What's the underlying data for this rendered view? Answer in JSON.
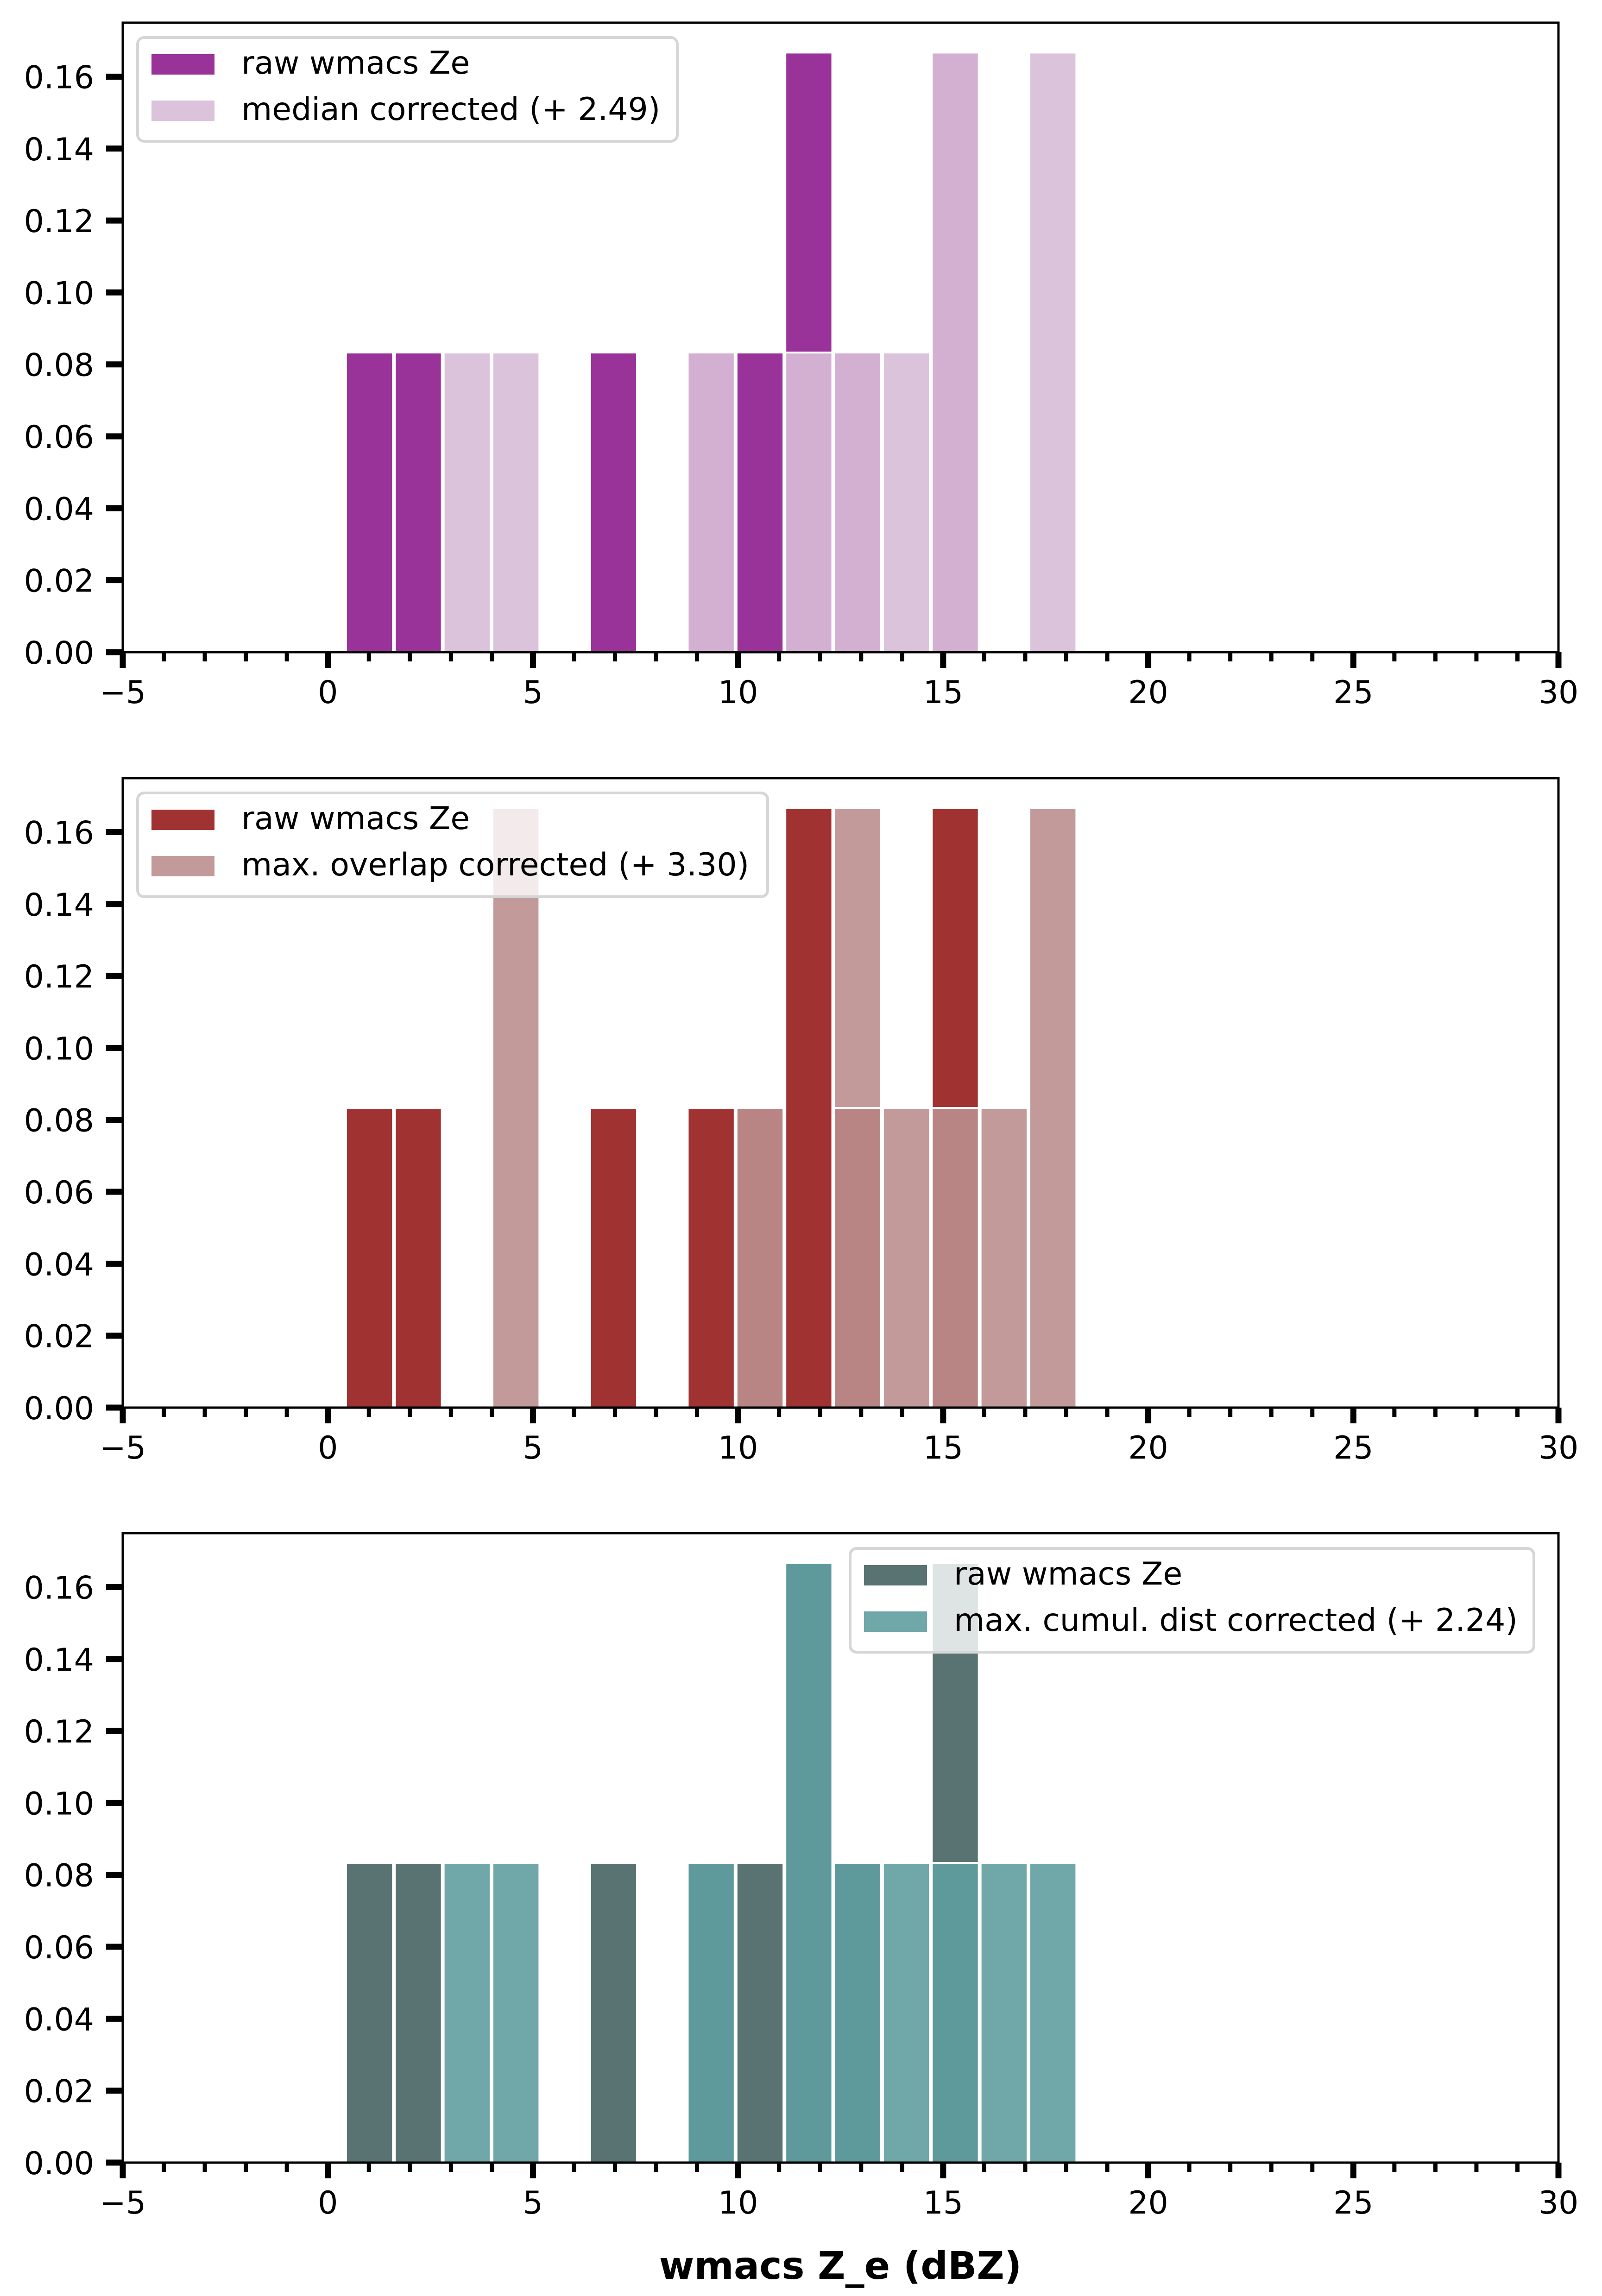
{
  "figure": {
    "xlabel": "wmacs Z_e (dBZ)"
  },
  "chart_data": [
    {
      "type": "bar",
      "subtype": "histogram-overlay",
      "title": "",
      "xlabel": "",
      "ylabel": "",
      "xlim": [
        -5,
        30
      ],
      "ylim": [
        0,
        0.175
      ],
      "x_major_ticks": [
        -5,
        0,
        5,
        10,
        15,
        20,
        25,
        30
      ],
      "x_tick_labels": [
        "−5",
        "0",
        "5",
        "10",
        "15",
        "20",
        "25",
        "30"
      ],
      "x_minor_step": 1,
      "y_ticks": [
        0.0,
        0.02,
        0.04,
        0.06,
        0.08,
        0.1,
        0.12,
        0.14,
        0.16
      ],
      "y_tick_labels": [
        "0.00",
        "0.02",
        "0.04",
        "0.06",
        "0.08",
        "0.10",
        "0.12",
        "0.14",
        "0.16"
      ],
      "grid": false,
      "legend_position": "upper-left",
      "bin_start": 0.42,
      "bin_width": 1.19,
      "bin_count": 15,
      "series": [
        {
          "name": "raw wmacs Ze",
          "color": "#993399",
          "values": [
            0.0833,
            0.0833,
            0,
            0,
            0,
            0.0833,
            0,
            0.0833,
            0.0833,
            0.1667,
            0.0833,
            0,
            0.1667,
            0,
            0
          ]
        },
        {
          "name": "median corrected (+ 2.49)",
          "color": "#DBC4DB",
          "values": [
            0,
            0,
            0.0833,
            0.0833,
            0,
            0,
            0,
            0.0833,
            0,
            0.0833,
            0.0833,
            0.0833,
            0.1667,
            0,
            0.1667
          ]
        }
      ],
      "overlap_color": "#D3B0D1"
    },
    {
      "type": "bar",
      "subtype": "histogram-overlay",
      "title": "",
      "xlabel": "",
      "ylabel": "",
      "xlim": [
        -5,
        30
      ],
      "ylim": [
        0,
        0.175
      ],
      "x_major_ticks": [
        -5,
        0,
        5,
        10,
        15,
        20,
        25,
        30
      ],
      "x_tick_labels": [
        "−5",
        "0",
        "5",
        "10",
        "15",
        "20",
        "25",
        "30"
      ],
      "x_minor_step": 1,
      "y_ticks": [
        0.0,
        0.02,
        0.04,
        0.06,
        0.08,
        0.1,
        0.12,
        0.14,
        0.16
      ],
      "y_tick_labels": [
        "0.00",
        "0.02",
        "0.04",
        "0.06",
        "0.08",
        "0.10",
        "0.12",
        "0.14",
        "0.16"
      ],
      "grid": false,
      "legend_position": "upper-left",
      "bin_start": 0.42,
      "bin_width": 1.19,
      "bin_count": 15,
      "series": [
        {
          "name": "raw wmacs Ze",
          "color": "#A03232",
          "values": [
            0.0833,
            0.0833,
            0,
            0,
            0,
            0.0833,
            0,
            0.0833,
            0.0833,
            0.1667,
            0.0833,
            0,
            0.1667,
            0,
            0
          ]
        },
        {
          "name": "max. overlap corrected (+ 3.30)",
          "color": "#C39A9A",
          "values": [
            0,
            0,
            0,
            0.1667,
            0,
            0,
            0,
            0,
            0.0833,
            0,
            0.1667,
            0.0833,
            0.0833,
            0.0833,
            0.1667
          ]
        }
      ],
      "overlap_color": "#B88584"
    },
    {
      "type": "bar",
      "subtype": "histogram-overlay",
      "title": "",
      "xlabel": "wmacs Z_e (dBZ)",
      "ylabel": "",
      "xlim": [
        -5,
        30
      ],
      "ylim": [
        0,
        0.175
      ],
      "x_major_ticks": [
        -5,
        0,
        5,
        10,
        15,
        20,
        25,
        30
      ],
      "x_tick_labels": [
        "−5",
        "0",
        "5",
        "10",
        "15",
        "20",
        "25",
        "30"
      ],
      "x_minor_step": 1,
      "y_ticks": [
        0.0,
        0.02,
        0.04,
        0.06,
        0.08,
        0.1,
        0.12,
        0.14,
        0.16
      ],
      "y_tick_labels": [
        "0.00",
        "0.02",
        "0.04",
        "0.06",
        "0.08",
        "0.10",
        "0.12",
        "0.14",
        "0.16"
      ],
      "grid": false,
      "legend_position": "upper-right",
      "bin_start": 0.42,
      "bin_width": 1.19,
      "bin_count": 15,
      "series": [
        {
          "name": "raw wmacs Ze",
          "color": "#597372",
          "values": [
            0.0833,
            0.0833,
            0,
            0,
            0,
            0.0833,
            0,
            0.0833,
            0.0833,
            0.1667,
            0.0833,
            0,
            0.1667,
            0,
            0
          ]
        },
        {
          "name": "max. cumul. dist corrected (+ 2.24)",
          "color": "#70A8A9",
          "values": [
            0,
            0,
            0.0833,
            0.0833,
            0,
            0,
            0,
            0.0833,
            0,
            0.1667,
            0.0833,
            0.0833,
            0.0833,
            0.0833,
            0.0833
          ]
        }
      ],
      "overlap_color": "#5E9A9B"
    }
  ]
}
